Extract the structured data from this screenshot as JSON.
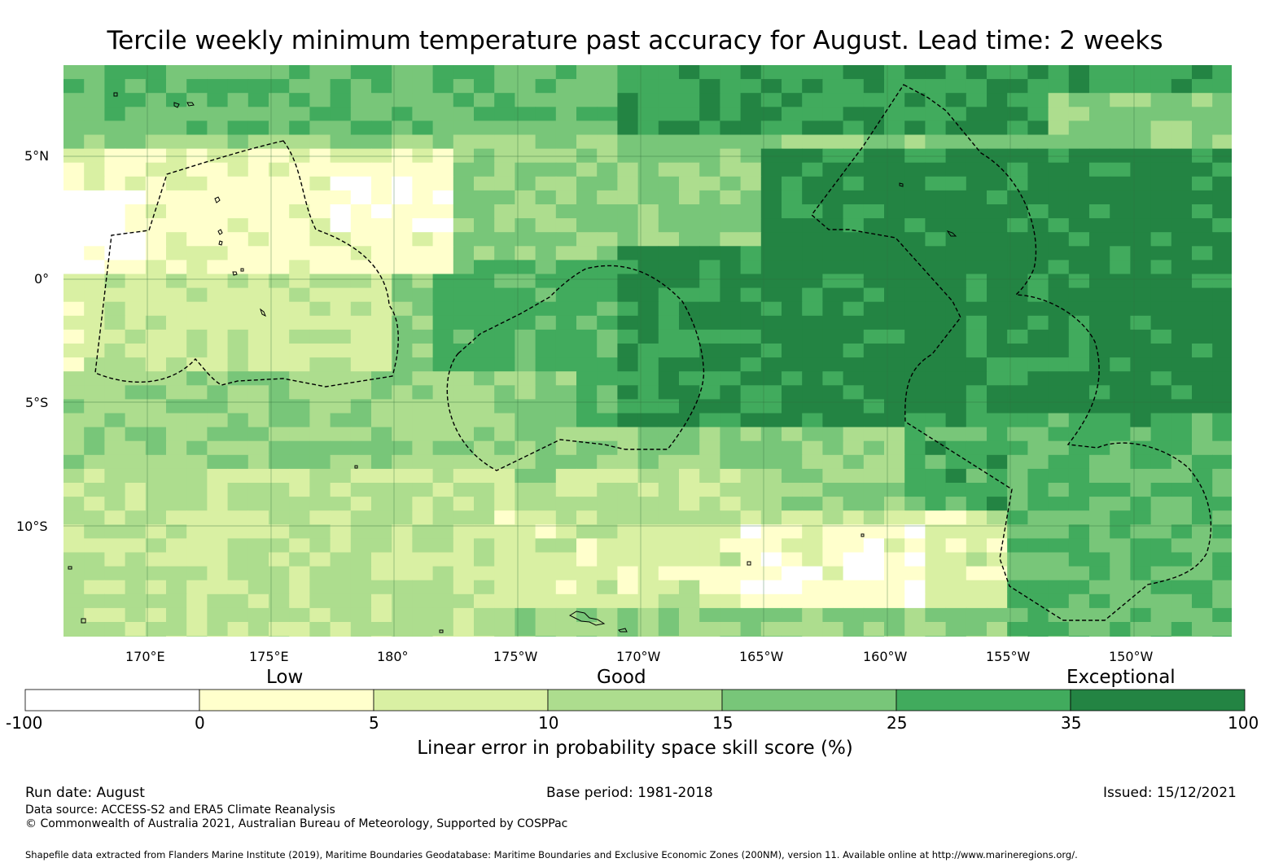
{
  "title": "Tercile weekly minimum temperature past accuracy for August. Lead time: 2 weeks",
  "map": {
    "lon_labels": [
      "170°E",
      "175°E",
      "180°",
      "175°W",
      "170°W",
      "165°W",
      "160°W",
      "155°W",
      "150°W"
    ],
    "lat_labels": [
      "5°N",
      "0°",
      "5°S",
      "10°S"
    ],
    "lon_range": [
      166.6,
      213.9
    ],
    "lat_range": [
      -14.6,
      8.7
    ],
    "gridlines": true
  },
  "colorbar": {
    "categories": [
      "Low",
      "Good",
      "Exceptional"
    ],
    "ticks": [
      "-100",
      "0",
      "5",
      "10",
      "15",
      "25",
      "35",
      "100"
    ],
    "bins": [
      {
        "from": -100,
        "to": 0,
        "color": "#ffffff"
      },
      {
        "from": 0,
        "to": 5,
        "color": "#ffffcc"
      },
      {
        "from": 5,
        "to": 10,
        "color": "#d9f0a3"
      },
      {
        "from": 10,
        "to": 15,
        "color": "#addd8e"
      },
      {
        "from": 15,
        "to": 25,
        "color": "#78c679"
      },
      {
        "from": 25,
        "to": 35,
        "color": "#41ab5d"
      },
      {
        "from": 35,
        "to": 100,
        "color": "#238443"
      }
    ],
    "title": "Linear error in probability space skill score (%)"
  },
  "footer": {
    "run_date": "Run date: August",
    "base_period": "Base period: 1981-2018",
    "issued": "Issued: 15/12/2021",
    "data_source": "Data source: ACCESS-S2 and ERA5 Climate Reanalysis",
    "copyright": "© Commonwealth of Australia 2021, Australian Bureau of Meteorology, Supported by COSPPac",
    "shapefile_note": "Shapefile data extracted from Flanders Marine Institute (2019), Maritime Boundaries Geodatabase: Maritime Boundaries and Exclusive Economic Zones (200NM), version 11. Available online at http://www.marineregions.org/."
  }
}
